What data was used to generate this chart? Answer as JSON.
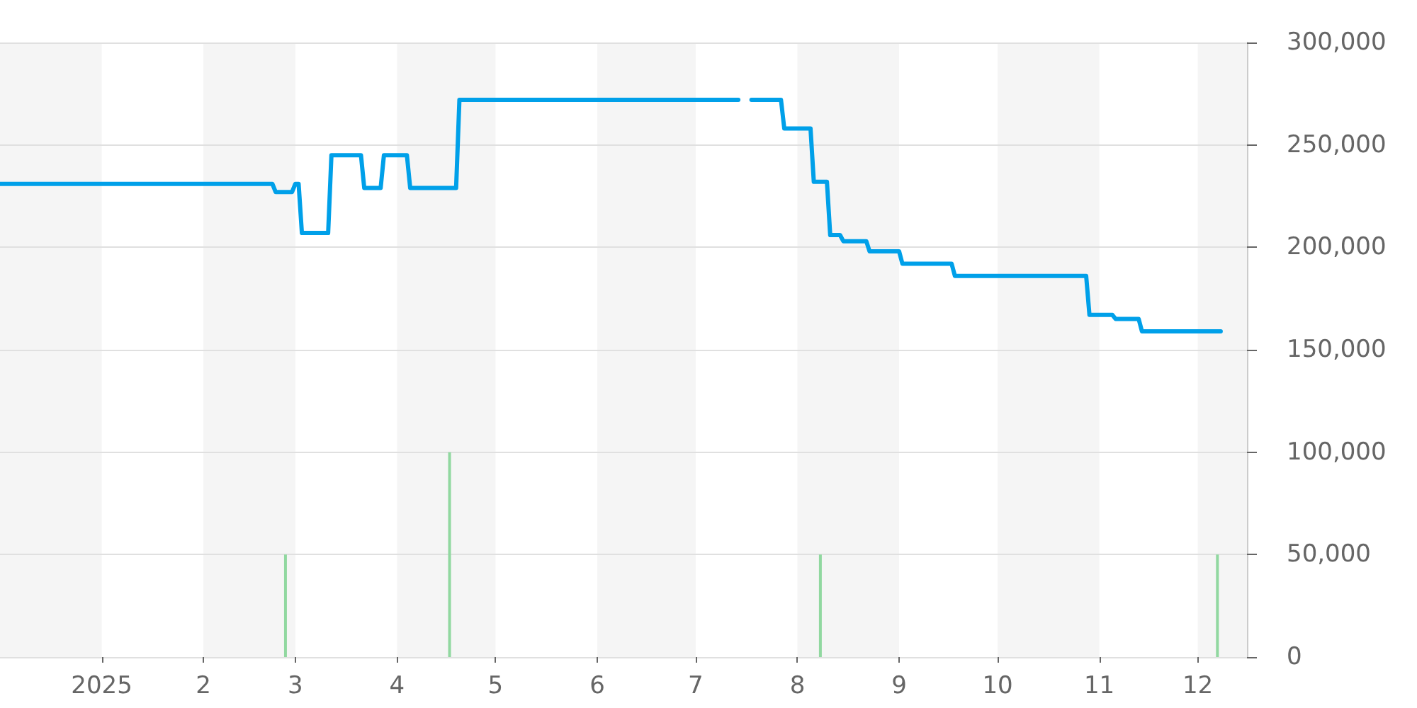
{
  "chart_data": {
    "type": "line",
    "xlim": [
      "2024-12-01",
      "2025-12-16"
    ],
    "xticks": [
      {
        "value": "2025-01-01",
        "label": "2025"
      },
      {
        "value": "2025-02-01",
        "label": "2"
      },
      {
        "value": "2025-03-01",
        "label": "3"
      },
      {
        "value": "2025-04-01",
        "label": "4"
      },
      {
        "value": "2025-05-01",
        "label": "5"
      },
      {
        "value": "2025-06-01",
        "label": "6"
      },
      {
        "value": "2025-07-01",
        "label": "7"
      },
      {
        "value": "2025-08-01",
        "label": "8"
      },
      {
        "value": "2025-09-01",
        "label": "9"
      },
      {
        "value": "2025-10-01",
        "label": "10"
      },
      {
        "value": "2025-11-01",
        "label": "11"
      },
      {
        "value": "2025-12-01",
        "label": "12"
      }
    ],
    "ylim": [
      0,
      300000
    ],
    "yticks": [
      0,
      {
        "value": 50000,
        "label": "50,000"
      },
      {
        "value": 100000,
        "label": "100,000"
      },
      {
        "value": 150000,
        "label": "150,000"
      },
      {
        "value": 200000,
        "label": "200,000"
      },
      {
        "value": 250000,
        "label": "250,000"
      },
      {
        "value": 300000,
        "label": "300,000"
      }
    ],
    "grid": "y",
    "marker": "none",
    "bands": [
      {
        "axis": "x",
        "from": "2024-12-01",
        "to": "2025-01-01",
        "color": "#f5f5f5"
      },
      {
        "axis": "x",
        "from": "2025-02-01",
        "to": "2025-03-01",
        "color": "#f5f5f5"
      },
      {
        "axis": "x",
        "from": "2025-04-01",
        "to": "2025-05-01",
        "color": "#f5f5f5"
      },
      {
        "axis": "x",
        "from": "2025-06-01",
        "to": "2025-07-01",
        "color": "#f5f5f5"
      },
      {
        "axis": "x",
        "from": "2025-08-01",
        "to": "2025-09-01",
        "color": "#f5f5f5"
      },
      {
        "axis": "x",
        "from": "2025-10-01",
        "to": "2025-11-01",
        "color": "#f5f5f5"
      },
      {
        "axis": "x",
        "from": "2025-12-01",
        "to": "2025-12-16",
        "color": "#f5f5f5"
      }
    ],
    "series": [
      {
        "type": "bar",
        "color": "#91d8a0",
        "x": [
          "2025-02-26",
          "2025-04-17",
          "2025-08-08",
          "2025-12-07"
        ],
        "values": [
          50000,
          100000,
          50000,
          50000
        ]
      },
      {
        "color": "#00a0e9",
        "x": [
          "2024-12-01",
          "2025-02-22",
          "2025-02-23",
          "2025-02-28",
          "2025-03-01",
          "2025-03-02",
          "2025-03-03",
          "2025-03-11",
          "2025-03-12",
          "2025-03-21",
          "2025-03-22",
          "2025-03-27",
          "2025-03-28",
          "2025-04-04",
          "2025-04-05",
          "2025-04-19",
          "2025-04-20",
          "2025-07-14",
          "2025-07-16",
          "2025-07-18",
          "2025-07-27",
          "2025-07-28",
          "2025-08-05",
          "2025-08-06",
          "2025-08-10",
          "2025-08-11",
          "2025-08-14",
          "2025-08-15",
          "2025-08-22",
          "2025-08-23",
          "2025-09-01",
          "2025-09-02",
          "2025-09-17",
          "2025-09-18",
          "2025-10-28",
          "2025-10-29",
          "2025-11-05",
          "2025-11-06",
          "2025-11-13",
          "2025-11-14",
          "2025-12-08"
        ],
        "values": [
          231000,
          231000,
          227000,
          227000,
          231000,
          231000,
          207000,
          207000,
          245000,
          245000,
          229000,
          229000,
          245000,
          245000,
          229000,
          229000,
          272000,
          272000,
          null,
          272000,
          272000,
          258000,
          258000,
          232000,
          232000,
          206000,
          206000,
          203000,
          203000,
          198000,
          198000,
          192000,
          192000,
          186000,
          186000,
          167000,
          167000,
          165000,
          165000,
          159000,
          159000
        ]
      }
    ]
  }
}
